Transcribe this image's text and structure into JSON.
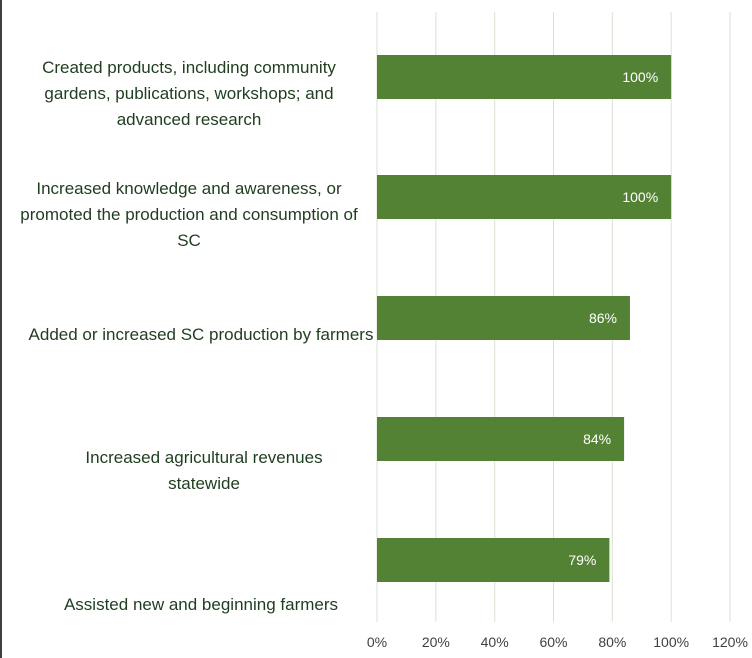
{
  "chart_data": {
    "type": "bar",
    "orientation": "horizontal",
    "categories": [
      "Created products, including community gardens, publications, workshops; and advanced research",
      "Increased knowledge and awareness, or promoted the production and consumption of SC",
      "Added or increased SC production by farmers",
      "Increased agricultural revenues statewide",
      "Assisted new and beginning farmers"
    ],
    "values": [
      100,
      100,
      86,
      84,
      79
    ],
    "data_labels": [
      "100%",
      "100%",
      "86%",
      "84%",
      "79%"
    ],
    "x_ticks": [
      "0%",
      "20%",
      "40%",
      "60%",
      "80%",
      "100%",
      "120%"
    ],
    "xlim": [
      0,
      120
    ],
    "grid": "vertical",
    "legend": "none",
    "bar_color": "#548235",
    "title": "",
    "xlabel": "",
    "ylabel": ""
  }
}
